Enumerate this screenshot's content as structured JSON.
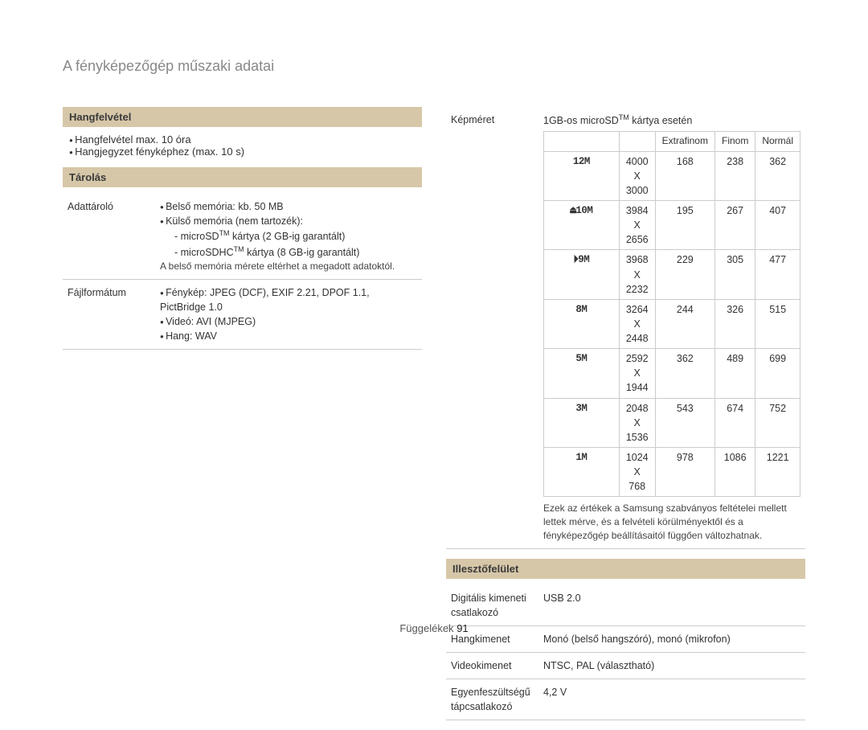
{
  "title": "A fényképezőgép műszaki adatai",
  "footer": {
    "label": "Függelékek",
    "page": "91"
  },
  "left": {
    "hangfelvetel": {
      "header": "Hangfelvétel",
      "items": [
        "Hangfelvétel max. 10 óra",
        "Hangjegyzet fényképhez (max. 10 s)"
      ]
    },
    "tarolas": {
      "header": "Tárolás",
      "rows": [
        {
          "label": "Adattároló",
          "bullets": [
            "Belső memória: kb. 50 MB",
            "Külső memória (nem tartozék):"
          ],
          "subbullets": [
            "microSD™ kártya (2 GB-ig garantált)",
            "microSDHC™ kártya (8 GB-ig garantált)"
          ],
          "note": "A belső memória mérete eltérhet a megadott adatoktól."
        },
        {
          "label": "Fájlformátum",
          "bullets": [
            "Fénykép: JPEG (DCF), EXIF 2.21, DPOF 1.1, PictBridge 1.0",
            "Videó: AVI (MJPEG)",
            "Hang: WAV"
          ]
        }
      ]
    }
  },
  "right": {
    "kepmeret": {
      "label": "Képméret",
      "caption": "1GB-os microSD™ kártya esetén",
      "headers": [
        "",
        "",
        "Extrafinom",
        "Finom",
        "Normál"
      ],
      "icons": [
        "12M",
        "⏏10M",
        "⏵9M",
        "8M",
        "5M",
        "3M",
        "1M"
      ],
      "rows": [
        [
          "4000 X 3000",
          "168",
          "238",
          "362"
        ],
        [
          "3984 X 2656",
          "195",
          "267",
          "407"
        ],
        [
          "3968 X 2232",
          "229",
          "305",
          "477"
        ],
        [
          "3264 X 2448",
          "244",
          "326",
          "515"
        ],
        [
          "2592 X 1944",
          "362",
          "489",
          "699"
        ],
        [
          "2048 X 1536",
          "543",
          "674",
          "752"
        ],
        [
          "1024 X 768",
          "978",
          "1086",
          "1221"
        ]
      ],
      "note": "Ezek az értékek a Samsung szabványos feltételei mellett lettek mérve, és a felvételi körülményektől és a fényképezőgép beállításaitól függően változhatnak."
    },
    "illeszto": {
      "header": "Illesztőfelület",
      "rows": [
        {
          "label": "Digitális kimeneti csatlakozó",
          "value": "USB 2.0"
        },
        {
          "label": "Hangkimenet",
          "value": "Monó (belső hangszóró), monó (mikrofon)"
        },
        {
          "label": "Videokimenet",
          "value": "NTSC, PAL (választható)"
        },
        {
          "label": "Egyenfeszültségű tápcsatlakozó",
          "value": "4,2 V"
        }
      ]
    }
  }
}
